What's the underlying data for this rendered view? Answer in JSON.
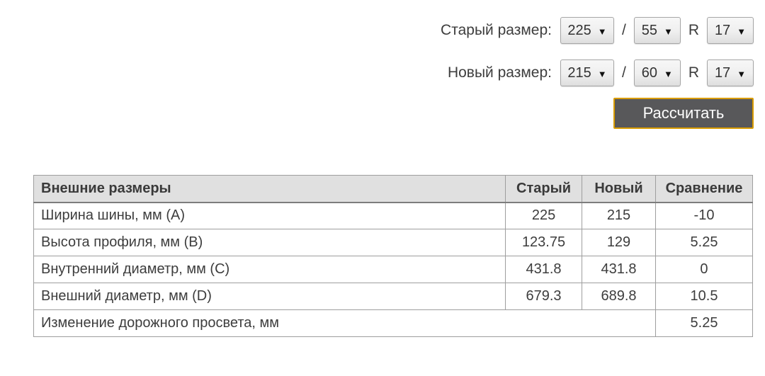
{
  "controls": {
    "dropdown_arrow": "▼",
    "old_size": {
      "label": "Старый размер:",
      "width": "225",
      "separator": "/",
      "aspect": "55",
      "radius_label": "R",
      "diameter": "17"
    },
    "new_size": {
      "label": "Новый размер:",
      "width": "215",
      "separator": "/",
      "aspect": "60",
      "radius_label": "R",
      "diameter": "17"
    },
    "calculate_button_label": "Рассчитать"
  },
  "table": {
    "headers": [
      "Внешние размеры",
      "Старый",
      "Новый",
      "Сравнение"
    ],
    "rows": [
      {
        "label": "Ширина шины, мм (A)",
        "old": "225",
        "new": "215",
        "diff": "-10"
      },
      {
        "label": "Высота профиля, мм (B)",
        "old": "123.75",
        "new": "129",
        "diff": "5.25"
      },
      {
        "label": "Внутренний диаметр, мм (C)",
        "old": "431.8",
        "new": "431.8",
        "diff": "0"
      },
      {
        "label": "Внешний диаметр, мм (D)",
        "old": "679.3",
        "new": "689.8",
        "diff": "10.5"
      }
    ],
    "footer": {
      "label": "Изменение дорожного просвета, мм",
      "diff": "5.25"
    }
  },
  "colors": {
    "button_bg": "#58585a",
    "button_border": "#d99c02",
    "header_bg": "#e0e0e0",
    "table_border": "#9e9e9e",
    "text": "#3d3d3d"
  }
}
